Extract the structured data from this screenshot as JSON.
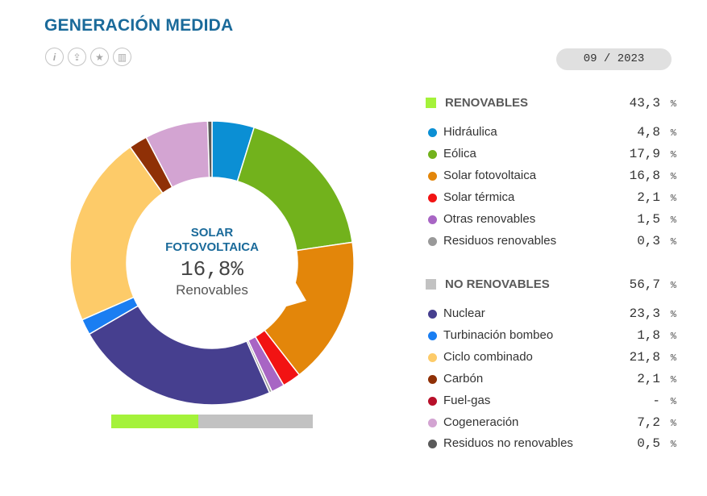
{
  "header": {
    "title": "GENERACIÓN MEDIDA",
    "date": "09 / 2023",
    "tools": [
      {
        "icon": "info-icon",
        "glyph": "i"
      },
      {
        "icon": "export-icon",
        "glyph": "⇪"
      },
      {
        "icon": "favorite-star-icon",
        "glyph": "★"
      },
      {
        "icon": "chart-view-icon",
        "glyph": "▥"
      }
    ]
  },
  "center": {
    "name": "SOLAR FOTOVOLTAICA",
    "value": "16,8%",
    "group": "Renovables"
  },
  "chart_data": {
    "type": "pie",
    "donut": true,
    "groups": [
      {
        "name": "RENOVABLES",
        "value": "43,3",
        "unit": "%",
        "color": "#a4f23a",
        "items": [
          {
            "name": "Hidráulica",
            "value": "4,8",
            "unit": "%",
            "num": 4.8,
            "color": "#0b8fd4"
          },
          {
            "name": "Eólica",
            "value": "17,9",
            "unit": "%",
            "num": 17.9,
            "color": "#72b21c"
          },
          {
            "name": "Solar fotovoltaica",
            "value": "16,8",
            "unit": "%",
            "num": 16.8,
            "color": "#e3860a"
          },
          {
            "name": "Solar térmica",
            "value": "2,1",
            "unit": "%",
            "num": 2.1,
            "color": "#f21313"
          },
          {
            "name": "Otras renovables",
            "value": "1,5",
            "unit": "%",
            "num": 1.5,
            "color": "#a865c4"
          },
          {
            "name": "Residuos renovables",
            "value": "0,3",
            "unit": "%",
            "num": 0.3,
            "color": "#999999"
          }
        ]
      },
      {
        "name": "NO RENOVABLES",
        "value": "56,7",
        "unit": "%",
        "color": "#c2c2c2",
        "items": [
          {
            "name": "Nuclear",
            "value": "23,3",
            "unit": "%",
            "num": 23.3,
            "color": "#463f8f"
          },
          {
            "name": "Turbinación bombeo",
            "value": "1,8",
            "unit": "%",
            "num": 1.8,
            "color": "#1a7ef2"
          },
          {
            "name": "Ciclo combinado",
            "value": "21,8",
            "unit": "%",
            "num": 21.8,
            "color": "#fdcb69"
          },
          {
            "name": "Carbón",
            "value": "2,1",
            "unit": "%",
            "num": 2.1,
            "color": "#8f3006"
          },
          {
            "name": "Fuel-gas",
            "value": "-",
            "unit": "%",
            "num": 0,
            "color": "#b8102a"
          },
          {
            "name": "Cogeneración",
            "value": "7,2",
            "unit": "%",
            "num": 7.2,
            "color": "#d3a4d2"
          },
          {
            "name": "Residuos no renovables",
            "value": "0,5",
            "unit": "%",
            "num": 0.5,
            "color": "#5a5a5a"
          }
        ]
      }
    ],
    "highlighted": "Solar fotovoltaica"
  }
}
